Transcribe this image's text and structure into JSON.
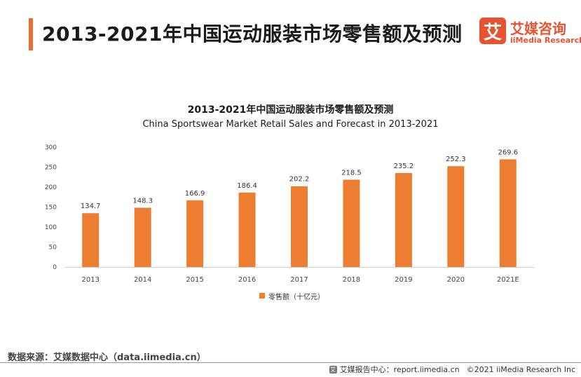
{
  "header": {
    "title": "2013-2021年中国运动服装市场零售额及预测"
  },
  "logo": {
    "mark": "艾",
    "name_cn": "艾媒咨询",
    "name_en": "iiMedia Research"
  },
  "chart_data": {
    "type": "bar",
    "title": "2013-2021年中国运动服装市场零售额及预测",
    "subtitle": "China Sportswear Market Retail Sales and Forecast  in 2013-2021",
    "categories": [
      "2013",
      "2014",
      "2015",
      "2016",
      "2017",
      "2018",
      "2019",
      "2020",
      "2021E"
    ],
    "series": [
      {
        "name": "零售额（十亿元）",
        "values": [
          134.7,
          148.3,
          166.9,
          186.4,
          202.2,
          218.5,
          235.2,
          252.3,
          269.6
        ]
      }
    ],
    "ylim": [
      0,
      300
    ],
    "yticks": [
      "0",
      "50",
      "100",
      "150",
      "200",
      "250",
      "300"
    ],
    "grid": false,
    "legend_position": "bottom",
    "bar_color": "#ed7d31"
  },
  "footer": {
    "source": "数据来源：艾媒数据中心（data.iimedia.cn）",
    "icon": "艾",
    "report_center": "艾媒报告中心：report.iimedia.cn",
    "copyright": "©2021  iiMedia Research  Inc"
  }
}
